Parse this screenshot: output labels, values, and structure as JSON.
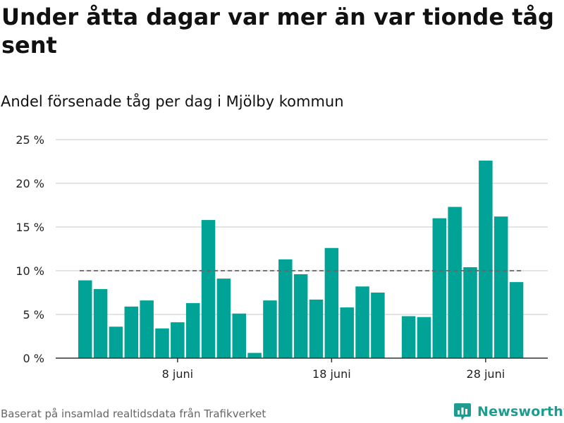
{
  "chart_data": {
    "type": "bar",
    "title": "Under åtta dagar var mer än var tionde tåg sent",
    "subtitle": "Andel försenade tåg per dag i Mjölby kommun",
    "x_tick_labels": [
      "8 juni",
      "18 juni",
      "28 juni"
    ],
    "y_tick_labels": [
      "0 %",
      "5 %",
      "10 %",
      "15 %",
      "20 %",
      "25 %"
    ],
    "ylim": [
      0,
      25
    ],
    "reference_line": 10,
    "grid": true,
    "bar_color": "#00a396",
    "reference_color": "#666666",
    "series": [
      {
        "x": [
          "2 juni",
          "3 juni",
          "4 juni",
          "5 juni",
          "6 juni",
          "7 juni",
          "8 juni",
          "9 juni",
          "10 juni",
          "11 juni",
          "12 juni",
          "13 juni",
          "14 juni",
          "15 juni",
          "16 juni",
          "17 juni",
          "18 juni",
          "19 juni",
          "20 juni",
          "21 juni",
          "22 juni",
          "23 juni",
          "24 juni",
          "25 juni",
          "26 juni",
          "27 juni",
          "28 juni",
          "29 juni",
          "30 juni"
        ],
        "values": [
          8.9,
          7.9,
          3.6,
          5.9,
          6.6,
          3.4,
          4.1,
          6.3,
          15.8,
          9.1,
          5.1,
          0.6,
          6.6,
          11.3,
          9.6,
          6.7,
          12.6,
          5.8,
          8.2,
          7.5,
          null,
          4.8,
          4.7,
          16.0,
          17.3,
          10.4,
          22.6,
          16.2,
          8.7
        ]
      }
    ]
  },
  "footer": {
    "source": "Baserat på insamlad realtidsdata från Trafikverket",
    "logo_text": "Newsworthy",
    "logo_icon": "newsworthy-logo-icon",
    "brand_color": "#1e9c8f"
  }
}
